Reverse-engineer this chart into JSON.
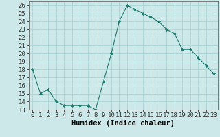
{
  "x": [
    0,
    1,
    2,
    3,
    4,
    5,
    6,
    7,
    8,
    9,
    10,
    11,
    12,
    13,
    14,
    15,
    16,
    17,
    18,
    19,
    20,
    21,
    22,
    23
  ],
  "y": [
    18,
    15,
    15.5,
    14,
    13.5,
    13.5,
    13.5,
    13.5,
    13,
    16.5,
    20,
    24,
    26,
    25.5,
    25,
    24.5,
    24,
    23,
    22.5,
    20.5,
    20.5,
    19.5,
    18.5,
    17.5
  ],
  "line_color": "#1a7a6e",
  "marker_color": "#1a7a6e",
  "bg_color": "#cce8e8",
  "grid_color": "#aad4d4",
  "xlabel": "Humidex (Indice chaleur)",
  "ylim": [
    13,
    26.5
  ],
  "yticks": [
    13,
    14,
    15,
    16,
    17,
    18,
    19,
    20,
    21,
    22,
    23,
    24,
    25,
    26
  ],
  "xticks": [
    0,
    1,
    2,
    3,
    4,
    5,
    6,
    7,
    8,
    9,
    10,
    11,
    12,
    13,
    14,
    15,
    16,
    17,
    18,
    19,
    20,
    21,
    22,
    23
  ],
  "xlabel_fontsize": 7.5,
  "tick_fontsize": 6.5
}
